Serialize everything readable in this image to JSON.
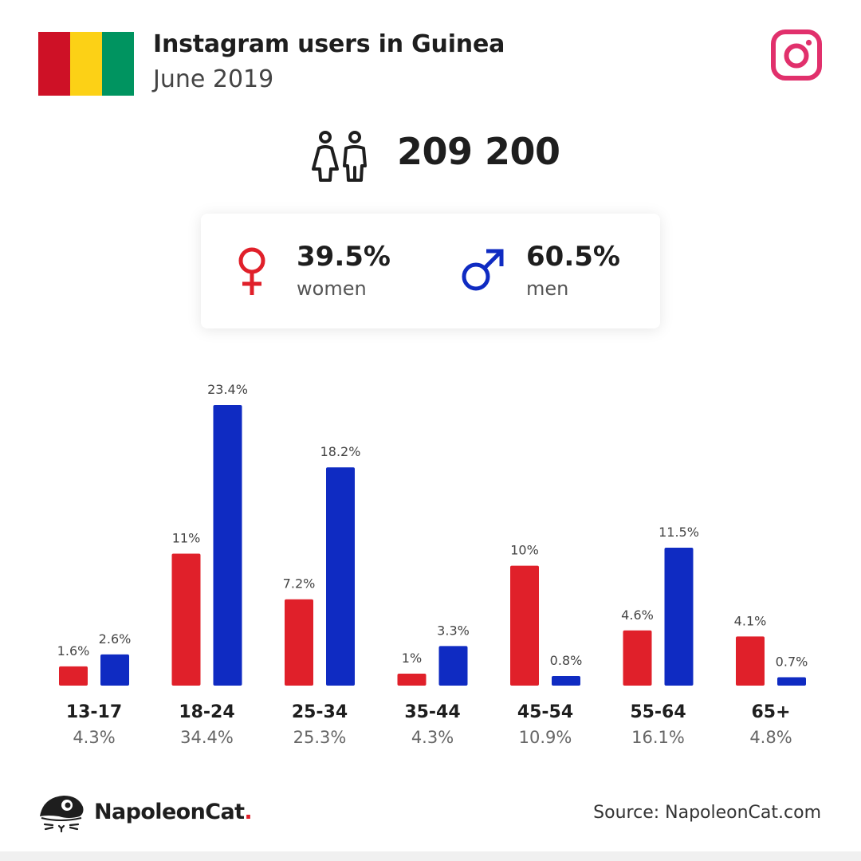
{
  "header": {
    "title": "Instagram users in Guinea",
    "subtitle": "June 2019",
    "flag_colors": [
      "#ce1126",
      "#fcd116",
      "#009460"
    ],
    "instagram_icon": "instagram-icon",
    "instagram_color": "#e1306c"
  },
  "total": {
    "icon": "people-icon",
    "value": "209 200"
  },
  "gender": {
    "women": {
      "percent": "39.5%",
      "label": "women",
      "icon": "female-symbol-icon",
      "color": "#e0202a"
    },
    "men": {
      "percent": "60.5%",
      "label": "men",
      "icon": "male-symbol-icon",
      "color": "#0f2bc2"
    }
  },
  "chart_data": {
    "type": "bar",
    "categories": [
      "13-17",
      "18-24",
      "25-34",
      "35-44",
      "45-54",
      "55-64",
      "65+"
    ],
    "category_totals": [
      "4.3%",
      "34.4%",
      "25.3%",
      "4.3%",
      "10.9%",
      "16.1%",
      "4.8%"
    ],
    "series": [
      {
        "color": "#e0202a",
        "values": [
          1.6,
          11,
          7.2,
          1,
          10,
          4.6,
          4.1
        ],
        "labels": [
          "1.6%",
          "11%",
          "7.2%",
          "1%",
          "10%",
          "4.6%",
          "4.1%"
        ]
      },
      {
        "color": "#0f2bc2",
        "values": [
          2.6,
          23.4,
          18.2,
          3.3,
          0.8,
          11.5,
          0.7
        ],
        "labels": [
          "2.6%",
          "23.4%",
          "18.2%",
          "3.3%",
          "0.8%",
          "11.5%",
          "0.7%"
        ]
      }
    ],
    "title": "",
    "xlabel": "",
    "ylabel": "",
    "ylim": [
      0,
      23.4
    ],
    "grid": false
  },
  "footer": {
    "brand_name": "NapoleonCat",
    "brand_dot": ".",
    "brand_icon": "napoleoncat-logo-icon",
    "source": "Source: NapoleonCat.com"
  }
}
